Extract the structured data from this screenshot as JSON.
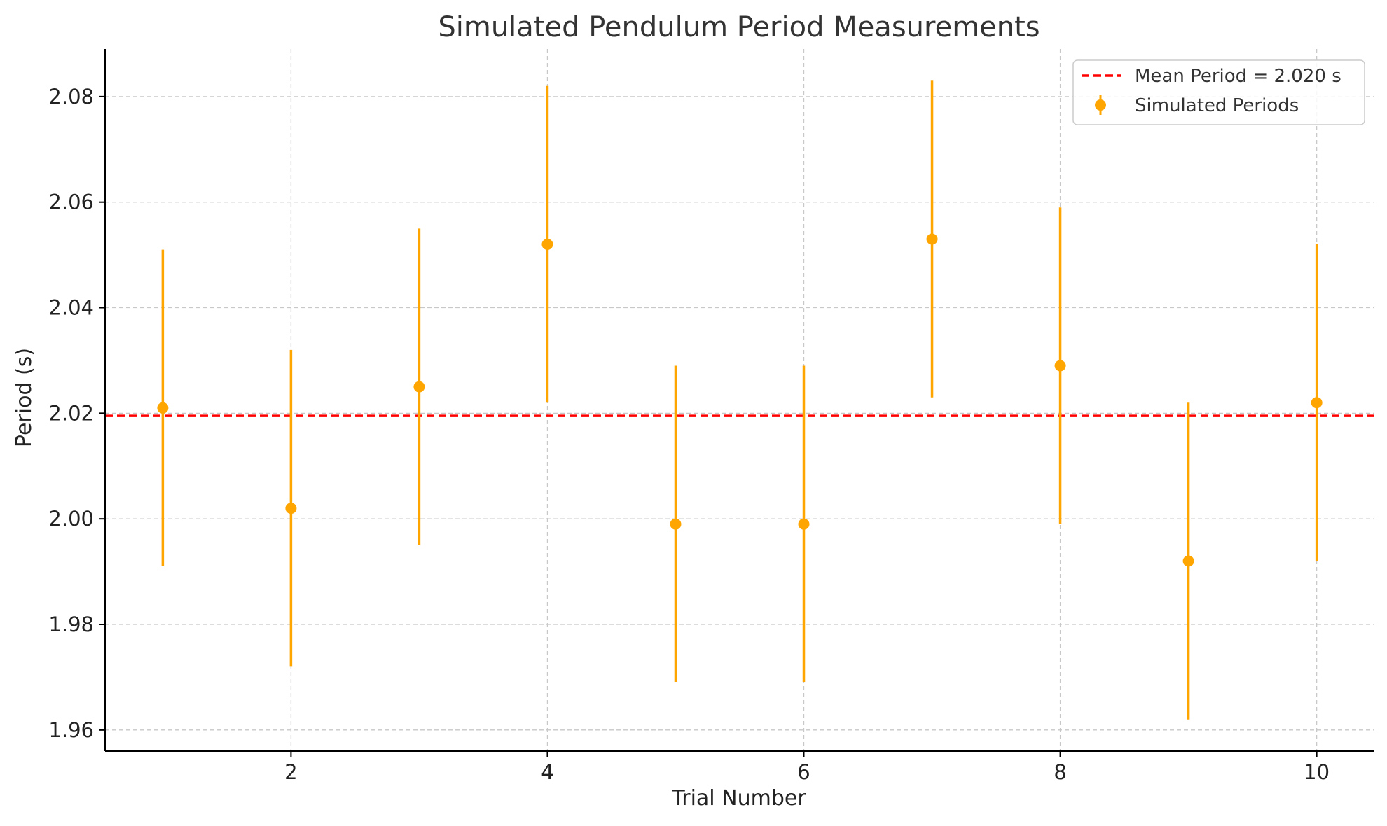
{
  "chart_data": {
    "type": "scatter",
    "title": "Simulated Pendulum Period Measurements",
    "xlabel": "Trial Number",
    "ylabel": "Period (s)",
    "xlim": [
      0.55,
      10.45
    ],
    "ylim": [
      1.956,
      2.089
    ],
    "x_ticks": [
      2,
      4,
      6,
      8,
      10
    ],
    "y_ticks": [
      1.96,
      1.98,
      2.0,
      2.02,
      2.04,
      2.06,
      2.08
    ],
    "grid": true,
    "legend_position": "top-right",
    "series": [
      {
        "name": "Simulated Periods",
        "kind": "errorbar",
        "color": "#FFA500",
        "x": [
          1,
          2,
          3,
          4,
          5,
          6,
          7,
          8,
          9,
          10
        ],
        "y": [
          2.021,
          2.002,
          2.025,
          2.052,
          1.999,
          1.999,
          2.053,
          2.029,
          1.992,
          2.022
        ],
        "yerr": [
          0.03,
          0.03,
          0.03,
          0.03,
          0.03,
          0.03,
          0.03,
          0.03,
          0.03,
          0.03
        ]
      }
    ],
    "reference_line": {
      "name": "Mean Period = 2.020 s",
      "value": 2.0195,
      "color": "#FF0000",
      "style": "dashed"
    }
  }
}
